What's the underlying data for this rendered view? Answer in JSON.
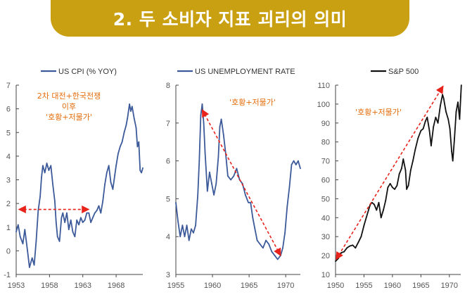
{
  "banner": {
    "title": "2. 두 소비자 지표 괴리의 의미",
    "color": "#caa013"
  },
  "chart_data": [
    {
      "type": "line",
      "legend": "US CPI (% YOY)",
      "series_color": "#3c5a9a",
      "xlim": [
        1953,
        1972
      ],
      "ylim": [
        -1,
        7
      ],
      "xticks": [
        "1953",
        "1958",
        "1963",
        "1968"
      ],
      "yticks": [
        "-1",
        "0",
        "1",
        "2",
        "3",
        "4",
        "5",
        "6",
        "7"
      ],
      "annotation": [
        "2차 대전+한국전쟁",
        "이후",
        "'호황+저물가'"
      ],
      "arrow": {
        "from": [
          1953.4,
          1.75
        ],
        "to": [
          1963.9,
          1.75
        ]
      },
      "points": [
        [
          1953.0,
          0.8
        ],
        [
          1953.3,
          1.1
        ],
        [
          1953.6,
          0.6
        ],
        [
          1954.0,
          0.3
        ],
        [
          1954.3,
          0.9
        ],
        [
          1954.7,
          0.0
        ],
        [
          1955.0,
          -0.7
        ],
        [
          1955.4,
          -0.3
        ],
        [
          1955.7,
          -0.6
        ],
        [
          1956.0,
          0.4
        ],
        [
          1956.3,
          1.7
        ],
        [
          1956.6,
          2.3
        ],
        [
          1956.8,
          3.1
        ],
        [
          1957.0,
          3.6
        ],
        [
          1957.3,
          3.3
        ],
        [
          1957.6,
          3.7
        ],
        [
          1957.9,
          3.4
        ],
        [
          1958.2,
          3.6
        ],
        [
          1958.5,
          2.8
        ],
        [
          1958.8,
          2.1
        ],
        [
          1959.0,
          1.2
        ],
        [
          1959.2,
          0.6
        ],
        [
          1959.5,
          0.4
        ],
        [
          1959.8,
          1.4
        ],
        [
          1960.0,
          1.6
        ],
        [
          1960.3,
          1.2
        ],
        [
          1960.6,
          1.6
        ],
        [
          1960.9,
          0.9
        ],
        [
          1961.2,
          1.3
        ],
        [
          1961.5,
          0.8
        ],
        [
          1961.8,
          0.6
        ],
        [
          1962.1,
          1.3
        ],
        [
          1962.4,
          1.1
        ],
        [
          1962.7,
          1.4
        ],
        [
          1963.0,
          1.2
        ],
        [
          1963.3,
          1.3
        ],
        [
          1963.6,
          1.6
        ],
        [
          1963.9,
          1.6
        ],
        [
          1964.2,
          1.2
        ],
        [
          1964.5,
          1.4
        ],
        [
          1964.8,
          1.6
        ],
        [
          1965.1,
          1.7
        ],
        [
          1965.4,
          1.9
        ],
        [
          1965.7,
          1.6
        ],
        [
          1966.0,
          2.1
        ],
        [
          1966.3,
          2.8
        ],
        [
          1966.6,
          3.3
        ],
        [
          1966.9,
          3.6
        ],
        [
          1967.2,
          2.9
        ],
        [
          1967.5,
          2.6
        ],
        [
          1967.8,
          3.2
        ],
        [
          1968.0,
          3.6
        ],
        [
          1968.3,
          4.1
        ],
        [
          1968.6,
          4.4
        ],
        [
          1968.9,
          4.6
        ],
        [
          1969.2,
          5.0
        ],
        [
          1969.5,
          5.3
        ],
        [
          1969.7,
          5.6
        ],
        [
          1970.0,
          6.2
        ],
        [
          1970.2,
          5.9
        ],
        [
          1970.4,
          6.1
        ],
        [
          1970.7,
          5.6
        ],
        [
          1971.0,
          5.2
        ],
        [
          1971.2,
          4.4
        ],
        [
          1971.4,
          4.6
        ],
        [
          1971.6,
          3.4
        ],
        [
          1971.8,
          3.3
        ],
        [
          1972.0,
          3.5
        ]
      ]
    },
    {
      "type": "line",
      "legend": "US UNEMPLOYMENT RATE",
      "series_color": "#3c5a9a",
      "xlim": [
        1955,
        1972
      ],
      "ylim": [
        3,
        8
      ],
      "xticks": [
        "1955",
        "1960",
        "1965",
        "1970"
      ],
      "yticks": [
        "3",
        "4",
        "5",
        "6",
        "7",
        "8"
      ],
      "annotation": [
        "'호황+저물가'"
      ],
      "arrow": {
        "from": [
          1958.6,
          7.35
        ],
        "to": [
          1969.3,
          3.5
        ]
      },
      "points": [
        [
          1955.0,
          4.9
        ],
        [
          1955.3,
          4.4
        ],
        [
          1955.6,
          4.0
        ],
        [
          1955.9,
          4.3
        ],
        [
          1956.2,
          4.0
        ],
        [
          1956.5,
          4.3
        ],
        [
          1956.8,
          3.9
        ],
        [
          1957.1,
          4.2
        ],
        [
          1957.4,
          4.1
        ],
        [
          1957.7,
          4.3
        ],
        [
          1958.0,
          5.1
        ],
        [
          1958.2,
          6.0
        ],
        [
          1958.4,
          7.2
        ],
        [
          1958.6,
          7.5
        ],
        [
          1958.8,
          7.0
        ],
        [
          1959.0,
          6.2
        ],
        [
          1959.3,
          5.2
        ],
        [
          1959.6,
          5.7
        ],
        [
          1959.9,
          5.4
        ],
        [
          1960.2,
          5.1
        ],
        [
          1960.5,
          5.4
        ],
        [
          1960.8,
          6.1
        ],
        [
          1961.0,
          6.9
        ],
        [
          1961.2,
          7.1
        ],
        [
          1961.5,
          6.7
        ],
        [
          1961.8,
          6.2
        ],
        [
          1962.1,
          5.6
        ],
        [
          1962.5,
          5.5
        ],
        [
          1962.9,
          5.6
        ],
        [
          1963.3,
          5.8
        ],
        [
          1963.7,
          5.5
        ],
        [
          1964.1,
          5.4
        ],
        [
          1964.5,
          5.1
        ],
        [
          1964.9,
          4.9
        ],
        [
          1965.2,
          4.9
        ],
        [
          1965.5,
          4.5
        ],
        [
          1965.8,
          4.2
        ],
        [
          1966.1,
          3.9
        ],
        [
          1966.5,
          3.8
        ],
        [
          1966.9,
          3.7
        ],
        [
          1967.3,
          3.9
        ],
        [
          1967.7,
          3.8
        ],
        [
          1968.1,
          3.6
        ],
        [
          1968.5,
          3.5
        ],
        [
          1968.9,
          3.4
        ],
        [
          1969.3,
          3.5
        ],
        [
          1969.6,
          3.7
        ],
        [
          1969.9,
          4.1
        ],
        [
          1970.2,
          4.8
        ],
        [
          1970.5,
          5.3
        ],
        [
          1970.8,
          5.9
        ],
        [
          1971.1,
          6.0
        ],
        [
          1971.4,
          5.9
        ],
        [
          1971.7,
          6.0
        ],
        [
          1972.0,
          5.8
        ]
      ]
    },
    {
      "type": "line",
      "legend": "S&P 500",
      "series_color": "#111111",
      "xlim": [
        1950,
        1972
      ],
      "ylim": [
        10,
        110
      ],
      "xticks": [
        "1950",
        "1955",
        "1960",
        "1965",
        "1970"
      ],
      "yticks": [
        "10",
        "20",
        "30",
        "40",
        "50",
        "60",
        "70",
        "80",
        "90",
        "100",
        "110"
      ],
      "annotation": [
        "'호황+저물가'"
      ],
      "arrow": {
        "from": [
          1950.1,
          18.0
        ],
        "to": [
          1968.9,
          109.5
        ]
      },
      "points": [
        [
          1950.0,
          17.0
        ],
        [
          1950.5,
          18.5
        ],
        [
          1951.0,
          21.5
        ],
        [
          1951.5,
          22.0
        ],
        [
          1952.0,
          24.0
        ],
        [
          1952.5,
          25.0
        ],
        [
          1953.0,
          25.5
        ],
        [
          1953.5,
          24.0
        ],
        [
          1954.0,
          27.0
        ],
        [
          1954.5,
          30.0
        ],
        [
          1955.0,
          36.0
        ],
        [
          1955.4,
          40.0
        ],
        [
          1955.8,
          44.0
        ],
        [
          1956.1,
          47.0
        ],
        [
          1956.4,
          48.0
        ],
        [
          1956.8,
          47.0
        ],
        [
          1957.2,
          44.0
        ],
        [
          1957.6,
          48.0
        ],
        [
          1958.0,
          40.0
        ],
        [
          1958.4,
          44.0
        ],
        [
          1958.8,
          49.0
        ],
        [
          1959.2,
          56.0
        ],
        [
          1959.6,
          58.0
        ],
        [
          1960.0,
          56.0
        ],
        [
          1960.4,
          55.0
        ],
        [
          1960.8,
          57.0
        ],
        [
          1961.2,
          63.0
        ],
        [
          1961.6,
          66.0
        ],
        [
          1961.9,
          71.0
        ],
        [
          1962.3,
          65.0
        ],
        [
          1962.5,
          55.0
        ],
        [
          1962.8,
          57.0
        ],
        [
          1963.2,
          65.0
        ],
        [
          1963.6,
          70.0
        ],
        [
          1964.0,
          76.0
        ],
        [
          1964.5,
          82.0
        ],
        [
          1965.0,
          86.0
        ],
        [
          1965.4,
          87.0
        ],
        [
          1965.8,
          91.0
        ],
        [
          1966.1,
          93.0
        ],
        [
          1966.5,
          86.0
        ],
        [
          1966.8,
          78.0
        ],
        [
          1967.2,
          88.0
        ],
        [
          1967.6,
          93.0
        ],
        [
          1968.0,
          90.0
        ],
        [
          1968.4,
          99.0
        ],
        [
          1968.8,
          105.0
        ],
        [
          1969.0,
          103.0
        ],
        [
          1969.4,
          96.0
        ],
        [
          1969.8,
          92.0
        ],
        [
          1970.1,
          87.0
        ],
        [
          1970.4,
          75.0
        ],
        [
          1970.6,
          70.0
        ],
        [
          1970.9,
          82.0
        ],
        [
          1971.2,
          96.0
        ],
        [
          1971.5,
          101.0
        ],
        [
          1971.8,
          92.0
        ],
        [
          1972.0,
          104.0
        ],
        [
          1972.1,
          110.0
        ]
      ]
    }
  ]
}
